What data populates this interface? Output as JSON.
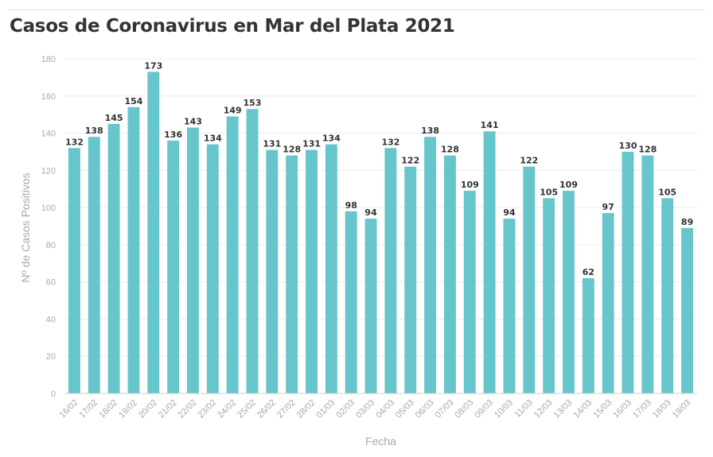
{
  "chart_data": {
    "type": "bar",
    "title": "Casos de Coronavirus en Mar del Plata 2021",
    "xlabel": "Fecha",
    "ylabel": "Nº de Casos Positivos",
    "ylim": [
      0,
      180
    ],
    "yticks": [
      0,
      20,
      40,
      60,
      80,
      100,
      120,
      140,
      160,
      180
    ],
    "grid": true,
    "color": "#67c5cc",
    "categories": [
      "16/02",
      "17/02",
      "18/02",
      "19/02",
      "20/02",
      "21/02",
      "22/02",
      "23/02",
      "24/02",
      "25/02",
      "26/02",
      "27/02",
      "28/02",
      "01/03",
      "02/03",
      "03/03",
      "04/03",
      "05/03",
      "06/03",
      "07/03",
      "08/03",
      "09/03",
      "10/03",
      "11/03",
      "12/03",
      "13/03",
      "14/03",
      "15/03",
      "16/03",
      "17/03",
      "18/03",
      "19/03"
    ],
    "values": [
      132,
      138,
      145,
      154,
      173,
      136,
      143,
      134,
      149,
      153,
      131,
      128,
      131,
      134,
      98,
      94,
      132,
      122,
      138,
      128,
      109,
      141,
      94,
      122,
      105,
      109,
      62,
      97,
      130,
      128,
      105,
      89
    ]
  }
}
